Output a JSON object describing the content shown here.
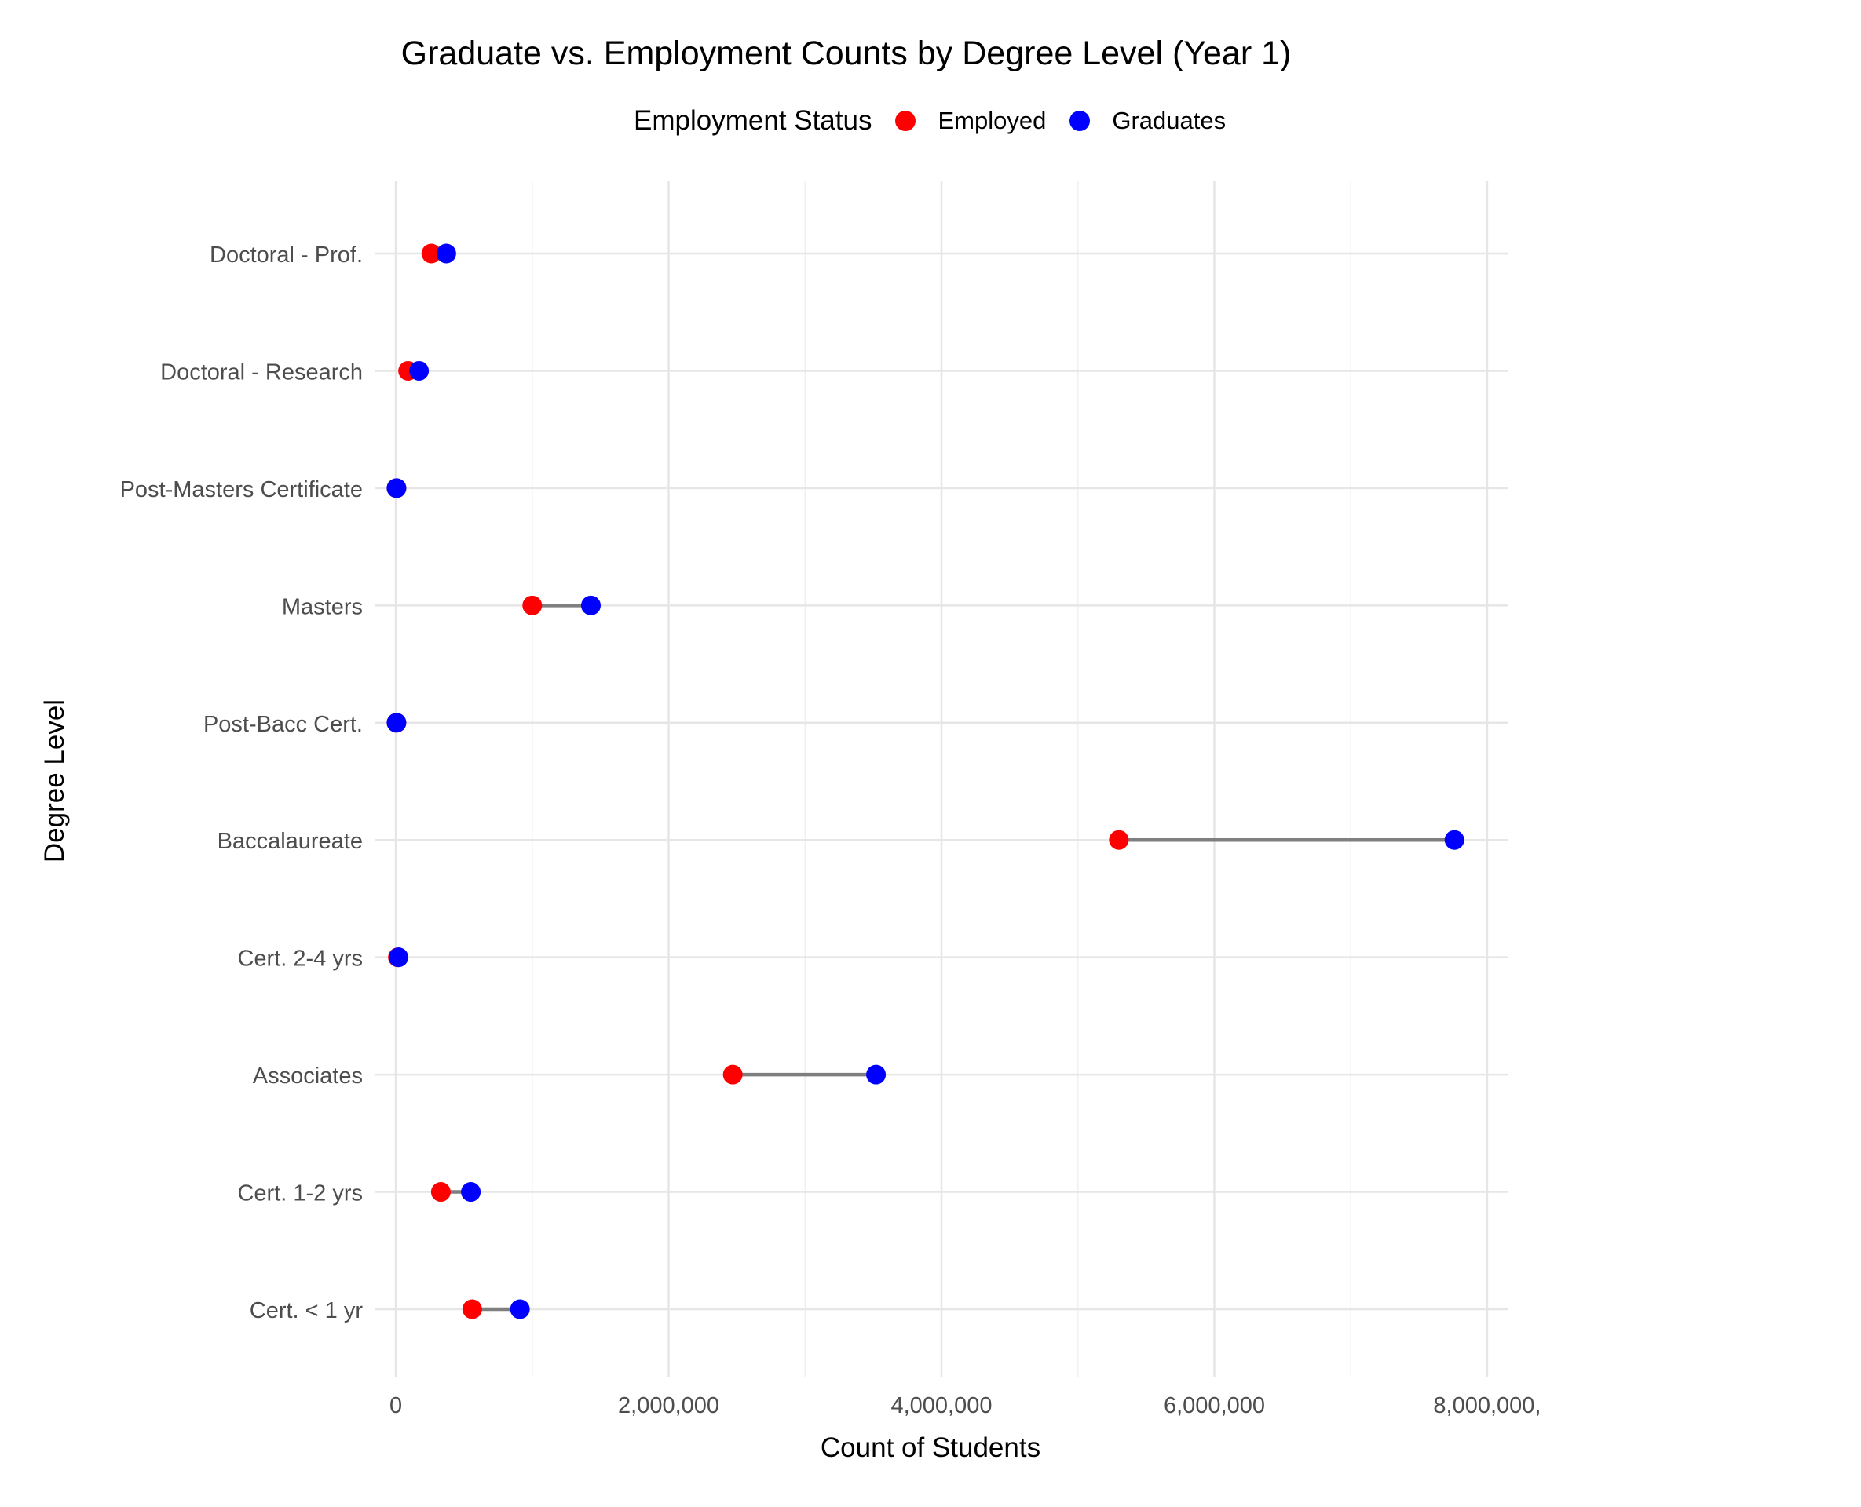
{
  "chart_data": {
    "type": "dumbbell",
    "title": "Graduate vs. Employment Counts by Degree Level (Year 1)",
    "xlabel": "Count of Students",
    "ylabel": "Degree Level",
    "xlim": [
      -150000,
      8150000
    ],
    "x_ticks": [
      0,
      2000000,
      4000000,
      6000000,
      8000000
    ],
    "x_tick_labels": [
      "0",
      "2,000,000",
      "4,000,000",
      "6,000,000",
      "8,000,000,"
    ],
    "grid": true,
    "legend": {
      "title": "Employment Status",
      "position": "top",
      "entries": [
        {
          "name": "Employed",
          "color": "#ff0000"
        },
        {
          "name": "Graduates",
          "color": "#0000ff"
        }
      ]
    },
    "categories": [
      "Doctoral - Prof.",
      "Doctoral - Research",
      "Post-Masters Certificate",
      "Masters",
      "Post-Bacc Cert.",
      "Baccalaureate",
      "Cert. 2-4 yrs",
      "Associates",
      "Cert. 1-2 yrs",
      "Cert. < 1 yr"
    ],
    "series": [
      {
        "name": "Employed",
        "color": "#ff0000",
        "values": [
          260000,
          90000,
          5000,
          1000000,
          5000,
          5300000,
          15000,
          2470000,
          330000,
          560000
        ]
      },
      {
        "name": "Graduates",
        "color": "#0000ff",
        "values": [
          370000,
          170000,
          5000,
          1430000,
          5000,
          7760000,
          20000,
          3520000,
          550000,
          910000
        ]
      }
    ],
    "segment_color": "#7f7f7f"
  }
}
